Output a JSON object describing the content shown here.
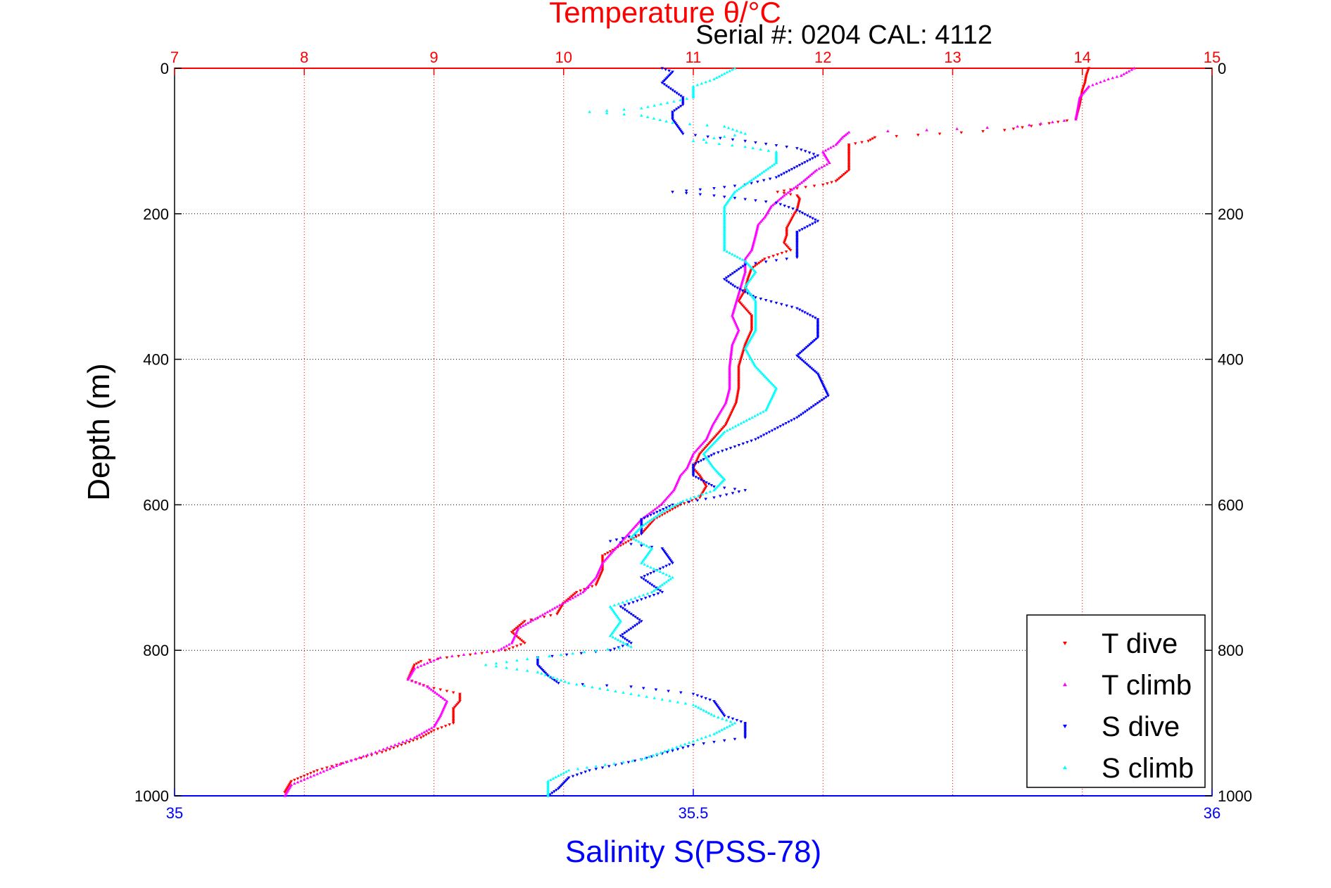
{
  "chart_data": {
    "type": "scatter",
    "title": "Temperature θ/°C",
    "subtitle": "Serial #: 0204  CAL: 4112",
    "ylabel": "Depth (m)",
    "ylim": [
      0,
      1000
    ],
    "y_reversed": true,
    "y_ticks": [
      "0",
      "200",
      "400",
      "600",
      "800",
      "1000"
    ],
    "temperature_axis": {
      "position": "top",
      "range": [
        7,
        15
      ],
      "ticks": [
        "7",
        "8",
        "9",
        "10",
        "11",
        "12",
        "13",
        "14",
        "15"
      ],
      "color": "#ff0000"
    },
    "salinity_axis": {
      "position": "bottom",
      "label": "Salinity S(PSS-78)",
      "range": [
        35,
        36
      ],
      "ticks": [
        "35",
        "35.5",
        "36"
      ],
      "color": "#0000ff"
    },
    "grid": true,
    "legend_position": "bottom-right",
    "series": [
      {
        "name": "T dive",
        "axis": "temperature",
        "color": "#ff0000",
        "marker": "triangle-down",
        "points": [
          [
            14.05,
            0
          ],
          [
            14.03,
            10
          ],
          [
            14.02,
            20
          ],
          [
            14.0,
            30
          ],
          [
            13.98,
            50
          ],
          [
            13.95,
            70
          ],
          [
            13.4,
            85
          ],
          [
            12.9,
            90
          ],
          [
            12.4,
            95
          ],
          [
            12.35,
            100
          ],
          [
            12.2,
            105
          ],
          [
            12.2,
            120
          ],
          [
            12.2,
            140
          ],
          [
            12.1,
            155
          ],
          [
            12.0,
            160
          ],
          [
            11.8,
            165
          ],
          [
            11.65,
            170
          ],
          [
            11.8,
            175
          ],
          [
            11.82,
            180
          ],
          [
            11.8,
            195
          ],
          [
            11.78,
            200
          ],
          [
            11.75,
            210
          ],
          [
            11.72,
            220
          ],
          [
            11.72,
            230
          ],
          [
            11.7,
            240
          ],
          [
            11.75,
            250
          ],
          [
            11.55,
            262
          ],
          [
            11.45,
            275
          ],
          [
            11.42,
            290
          ],
          [
            11.4,
            305
          ],
          [
            11.35,
            320
          ],
          [
            11.45,
            340
          ],
          [
            11.45,
            360
          ],
          [
            11.4,
            380
          ],
          [
            11.35,
            410
          ],
          [
            11.35,
            440
          ],
          [
            11.33,
            460
          ],
          [
            11.25,
            490
          ],
          [
            11.15,
            510
          ],
          [
            11.05,
            530
          ],
          [
            11.0,
            550
          ],
          [
            11.05,
            560
          ],
          [
            11.1,
            575
          ],
          [
            11.05,
            590
          ],
          [
            10.9,
            600
          ],
          [
            10.7,
            620
          ],
          [
            10.6,
            640
          ],
          [
            10.5,
            650
          ],
          [
            10.4,
            660
          ],
          [
            10.3,
            670
          ],
          [
            10.3,
            690
          ],
          [
            10.25,
            710
          ],
          [
            10.1,
            720
          ],
          [
            10.0,
            735
          ],
          [
            9.95,
            750
          ],
          [
            9.7,
            760
          ],
          [
            9.6,
            775
          ],
          [
            9.7,
            790
          ],
          [
            9.55,
            800
          ],
          [
            9.1,
            810
          ],
          [
            8.9,
            815
          ],
          [
            8.85,
            820
          ],
          [
            8.8,
            840
          ],
          [
            8.95,
            850
          ],
          [
            9.2,
            860
          ],
          [
            9.2,
            870
          ],
          [
            9.15,
            880
          ],
          [
            9.15,
            900
          ],
          [
            9.0,
            910
          ],
          [
            8.9,
            920
          ],
          [
            8.6,
            940
          ],
          [
            8.4,
            950
          ],
          [
            8.1,
            965
          ],
          [
            7.9,
            980
          ],
          [
            7.85,
            995
          ]
        ]
      },
      {
        "name": "T climb",
        "axis": "temperature",
        "color": "#ff00ff",
        "marker": "triangle-up",
        "points": [
          [
            14.4,
            0
          ],
          [
            14.3,
            10
          ],
          [
            14.2,
            15
          ],
          [
            14.05,
            25
          ],
          [
            13.98,
            40
          ],
          [
            13.95,
            70
          ],
          [
            13.5,
            80
          ],
          [
            12.8,
            85
          ],
          [
            12.2,
            88
          ],
          [
            12.15,
            95
          ],
          [
            12.1,
            105
          ],
          [
            12.0,
            115
          ],
          [
            12.05,
            130
          ],
          [
            11.95,
            140
          ],
          [
            11.85,
            155
          ],
          [
            11.7,
            175
          ],
          [
            11.6,
            190
          ],
          [
            11.55,
            205
          ],
          [
            11.5,
            215
          ],
          [
            11.48,
            230
          ],
          [
            11.45,
            250
          ],
          [
            11.4,
            262
          ],
          [
            11.4,
            280
          ],
          [
            11.35,
            310
          ],
          [
            11.3,
            340
          ],
          [
            11.35,
            360
          ],
          [
            11.3,
            380
          ],
          [
            11.28,
            410
          ],
          [
            11.28,
            440
          ],
          [
            11.25,
            460
          ],
          [
            11.15,
            490
          ],
          [
            11.1,
            510
          ],
          [
            11.0,
            530
          ],
          [
            10.95,
            550
          ],
          [
            10.9,
            560
          ],
          [
            10.85,
            580
          ],
          [
            10.75,
            600
          ],
          [
            10.6,
            620
          ],
          [
            10.5,
            640
          ],
          [
            10.4,
            660
          ],
          [
            10.3,
            680
          ],
          [
            10.25,
            700
          ],
          [
            10.15,
            720
          ],
          [
            9.95,
            740
          ],
          [
            9.8,
            755
          ],
          [
            9.65,
            770
          ],
          [
            9.6,
            790
          ],
          [
            9.5,
            800
          ],
          [
            9.05,
            810
          ],
          [
            8.85,
            825
          ],
          [
            8.8,
            840
          ],
          [
            8.95,
            850
          ],
          [
            9.1,
            870
          ],
          [
            9.05,
            890
          ],
          [
            9.0,
            905
          ],
          [
            8.85,
            920
          ],
          [
            8.55,
            940
          ],
          [
            8.3,
            955
          ],
          [
            8.1,
            970
          ],
          [
            7.9,
            985
          ],
          [
            7.85,
            1000
          ]
        ]
      },
      {
        "name": "S dive",
        "axis": "salinity",
        "color": "#0000ff",
        "marker": "triangle-down",
        "points": [
          [
            35.47,
            0
          ],
          [
            35.48,
            5
          ],
          [
            35.47,
            20
          ],
          [
            35.48,
            30
          ],
          [
            35.49,
            40
          ],
          [
            35.49,
            50
          ],
          [
            35.48,
            60
          ],
          [
            35.48,
            70
          ],
          [
            35.49,
            90
          ],
          [
            35.55,
            100
          ],
          [
            35.6,
            110
          ],
          [
            35.62,
            120
          ],
          [
            35.6,
            135
          ],
          [
            35.58,
            150
          ],
          [
            35.55,
            160
          ],
          [
            35.52,
            165
          ],
          [
            35.48,
            170
          ],
          [
            35.52,
            175
          ],
          [
            35.55,
            180
          ],
          [
            35.58,
            185
          ],
          [
            35.6,
            195
          ],
          [
            35.62,
            210
          ],
          [
            35.6,
            225
          ],
          [
            35.6,
            240
          ],
          [
            35.6,
            260
          ],
          [
            35.55,
            270
          ],
          [
            35.53,
            290
          ],
          [
            35.54,
            300
          ],
          [
            35.56,
            315
          ],
          [
            35.6,
            330
          ],
          [
            35.62,
            345
          ],
          [
            35.62,
            370
          ],
          [
            35.6,
            395
          ],
          [
            35.62,
            420
          ],
          [
            35.63,
            450
          ],
          [
            35.6,
            480
          ],
          [
            35.56,
            510
          ],
          [
            35.52,
            530
          ],
          [
            35.5,
            545
          ],
          [
            35.5,
            560
          ],
          [
            35.52,
            575
          ],
          [
            35.55,
            580
          ],
          [
            35.52,
            590
          ],
          [
            35.48,
            600
          ],
          [
            35.45,
            620
          ],
          [
            35.45,
            640
          ],
          [
            35.42,
            650
          ],
          [
            35.47,
            660
          ],
          [
            35.48,
            680
          ],
          [
            35.45,
            700
          ],
          [
            35.47,
            720
          ],
          [
            35.43,
            740
          ],
          [
            35.45,
            760
          ],
          [
            35.43,
            780
          ],
          [
            35.44,
            790
          ],
          [
            35.42,
            800
          ],
          [
            35.35,
            810
          ],
          [
            35.35,
            820
          ],
          [
            35.36,
            835
          ],
          [
            35.37,
            845
          ],
          [
            35.44,
            850
          ],
          [
            35.5,
            860
          ],
          [
            35.52,
            870
          ],
          [
            35.53,
            890
          ],
          [
            35.55,
            900
          ],
          [
            35.55,
            920
          ],
          [
            35.5,
            930
          ],
          [
            35.45,
            950
          ],
          [
            35.4,
            965
          ],
          [
            35.38,
            975
          ],
          [
            35.37,
            990
          ],
          [
            35.36,
            1000
          ]
        ]
      },
      {
        "name": "S climb",
        "axis": "salinity",
        "color": "#00ffff",
        "marker": "triangle-up",
        "points": [
          [
            35.54,
            0
          ],
          [
            35.52,
            15
          ],
          [
            35.5,
            25
          ],
          [
            35.5,
            40
          ],
          [
            35.45,
            55
          ],
          [
            35.4,
            60
          ],
          [
            35.45,
            65
          ],
          [
            35.48,
            75
          ],
          [
            35.53,
            80
          ],
          [
            35.55,
            90
          ],
          [
            35.5,
            100
          ],
          [
            35.55,
            108
          ],
          [
            35.58,
            115
          ],
          [
            35.58,
            130
          ],
          [
            35.56,
            150
          ],
          [
            35.54,
            170
          ],
          [
            35.53,
            190
          ],
          [
            35.53,
            210
          ],
          [
            35.53,
            230
          ],
          [
            35.53,
            250
          ],
          [
            35.55,
            265
          ],
          [
            35.56,
            280
          ],
          [
            35.55,
            300
          ],
          [
            35.56,
            320
          ],
          [
            35.56,
            340
          ],
          [
            35.56,
            360
          ],
          [
            35.55,
            385
          ],
          [
            35.56,
            410
          ],
          [
            35.58,
            440
          ],
          [
            35.57,
            470
          ],
          [
            35.53,
            500
          ],
          [
            35.51,
            530
          ],
          [
            35.52,
            550
          ],
          [
            35.53,
            565
          ],
          [
            35.52,
            580
          ],
          [
            35.49,
            595
          ],
          [
            35.47,
            610
          ],
          [
            35.45,
            630
          ],
          [
            35.44,
            645
          ],
          [
            35.46,
            660
          ],
          [
            35.45,
            680
          ],
          [
            35.48,
            700
          ],
          [
            35.46,
            720
          ],
          [
            35.42,
            740
          ],
          [
            35.43,
            760
          ],
          [
            35.42,
            780
          ],
          [
            35.44,
            795
          ],
          [
            35.35,
            810
          ],
          [
            35.3,
            820
          ],
          [
            35.35,
            830
          ],
          [
            35.38,
            845
          ],
          [
            35.44,
            860
          ],
          [
            35.5,
            875
          ],
          [
            35.52,
            890
          ],
          [
            35.54,
            900
          ],
          [
            35.52,
            915
          ],
          [
            35.48,
            935
          ],
          [
            35.45,
            950
          ],
          [
            35.38,
            965
          ],
          [
            35.36,
            980
          ],
          [
            35.36,
            1000
          ]
        ]
      }
    ]
  }
}
